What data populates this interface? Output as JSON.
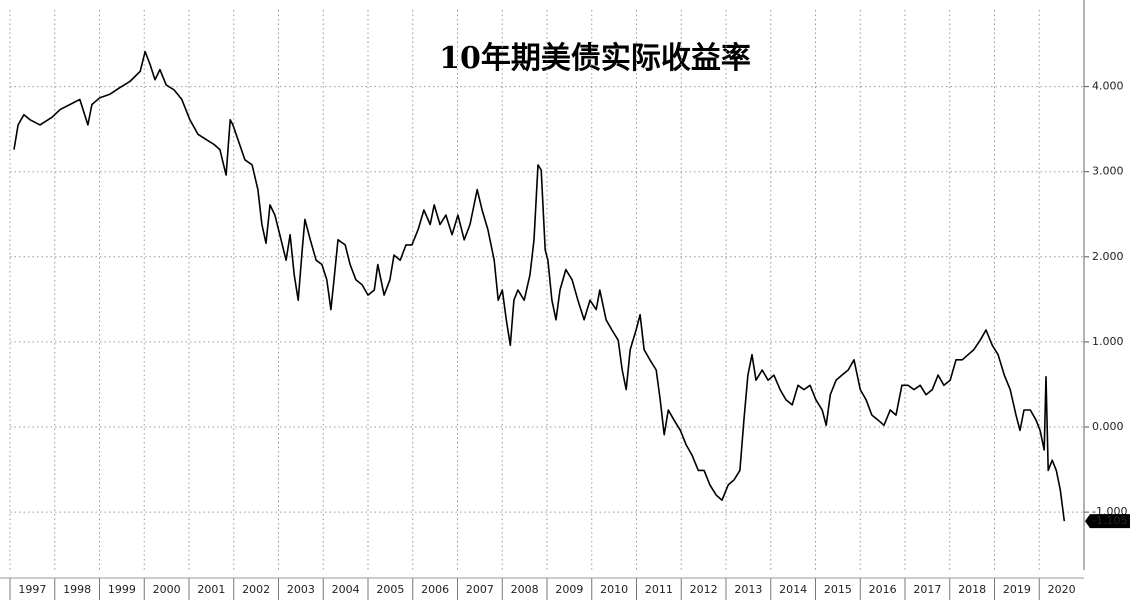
{
  "chart_data": {
    "type": "line",
    "title": "10年期美债实际收益率",
    "x": [
      1997.09,
      1997.18,
      1997.31,
      1997.45,
      1997.67,
      1997.94,
      1998.12,
      1998.34,
      1998.56,
      1998.74,
      1998.83,
      1999.01,
      1999.23,
      1999.46,
      1999.68,
      1999.91,
      2000.02,
      2000.13,
      2000.24,
      2000.35,
      2000.49,
      2000.67,
      2000.84,
      2001.02,
      2001.2,
      2001.38,
      2001.56,
      2001.69,
      2001.83,
      2001.92,
      2001.98,
      2002.25,
      2002.41,
      2002.54,
      2002.63,
      2002.72,
      2002.81,
      2002.92,
      2003.03,
      2003.17,
      2003.26,
      2003.35,
      2003.44,
      2003.53,
      2003.59,
      2003.71,
      2003.84,
      2003.97,
      2004.08,
      2004.17,
      2004.24,
      2004.33,
      2004.49,
      2004.6,
      2004.73,
      2004.87,
      2005.0,
      2005.14,
      2005.22,
      2005.36,
      2005.49,
      2005.58,
      2005.72,
      2005.85,
      2005.98,
      2006.12,
      2006.25,
      2006.39,
      2006.48,
      2006.61,
      2006.74,
      2006.88,
      2007.01,
      2007.15,
      2007.28,
      2007.44,
      2007.55,
      2007.68,
      2007.82,
      2007.91,
      2008.0,
      2008.09,
      2008.18,
      2008.26,
      2008.35,
      2008.49,
      2008.62,
      2008.71,
      2008.8,
      2008.87,
      2008.96,
      2009.02,
      2009.11,
      2009.2,
      2009.29,
      2009.42,
      2009.56,
      2009.69,
      2009.83,
      2009.96,
      2010.1,
      2010.18,
      2010.32,
      2010.45,
      2010.59,
      2010.68,
      2010.77,
      2010.86,
      2010.99,
      2011.08,
      2011.17,
      2011.3,
      2011.44,
      2011.53,
      2011.62,
      2011.71,
      2011.84,
      2011.98,
      2012.11,
      2012.24,
      2012.38,
      2012.51,
      2012.64,
      2012.78,
      2012.91,
      2013.05,
      2013.18,
      2013.31,
      2013.4,
      2013.49,
      2013.58,
      2013.67,
      2013.81,
      2013.94,
      2014.07,
      2014.21,
      2014.34,
      2014.48,
      2014.61,
      2014.74,
      2014.88,
      2015.01,
      2015.15,
      2015.24,
      2015.33,
      2015.46,
      2015.59,
      2015.73,
      2015.86,
      2016.0,
      2016.13,
      2016.26,
      2016.4,
      2016.53,
      2016.67,
      2016.8,
      2016.93,
      2017.07,
      2017.2,
      2017.34,
      2017.47,
      2017.61,
      2017.74,
      2017.87,
      2018.01,
      2018.14,
      2018.28,
      2018.41,
      2018.54,
      2018.68,
      2018.81,
      2018.95,
      2019.08,
      2019.22,
      2019.35,
      2019.48,
      2019.57,
      2019.66,
      2019.8,
      2019.93,
      2020.02,
      2020.11,
      2020.15,
      2020.2,
      2020.29,
      2020.38,
      2020.47,
      2020.56
    ],
    "series": [
      {
        "color": "#000000",
        "values": [
          3.26,
          3.55,
          3.67,
          3.61,
          3.55,
          3.64,
          3.73,
          3.79,
          3.85,
          3.55,
          3.79,
          3.87,
          3.91,
          3.99,
          4.06,
          4.18,
          4.41,
          4.26,
          4.08,
          4.2,
          4.02,
          3.96,
          3.85,
          3.61,
          3.44,
          3.38,
          3.32,
          3.26,
          2.96,
          3.61,
          3.55,
          3.14,
          3.08,
          2.79,
          2.38,
          2.16,
          2.61,
          2.49,
          2.26,
          1.96,
          2.26,
          1.79,
          1.49,
          2.08,
          2.44,
          2.2,
          1.96,
          1.91,
          1.73,
          1.38,
          1.73,
          2.2,
          2.14,
          1.91,
          1.73,
          1.67,
          1.55,
          1.61,
          1.91,
          1.55,
          1.73,
          2.02,
          1.96,
          2.14,
          2.14,
          2.32,
          2.55,
          2.38,
          2.61,
          2.38,
          2.49,
          2.26,
          2.49,
          2.2,
          2.38,
          2.79,
          2.55,
          2.32,
          1.96,
          1.49,
          1.61,
          1.26,
          0.96,
          1.49,
          1.61,
          1.49,
          1.79,
          2.2,
          3.08,
          3.02,
          2.08,
          1.96,
          1.49,
          1.26,
          1.61,
          1.85,
          1.73,
          1.49,
          1.26,
          1.49,
          1.38,
          1.61,
          1.26,
          1.14,
          1.02,
          0.67,
          0.44,
          0.91,
          1.14,
          1.32,
          0.91,
          0.79,
          0.67,
          0.32,
          -0.09,
          0.2,
          0.08,
          -0.04,
          -0.21,
          -0.33,
          -0.51,
          -0.51,
          -0.68,
          -0.8,
          -0.86,
          -0.68,
          -0.62,
          -0.51,
          0.08,
          0.61,
          0.85,
          0.55,
          0.67,
          0.55,
          0.61,
          0.44,
          0.32,
          0.26,
          0.49,
          0.44,
          0.49,
          0.32,
          0.2,
          0.02,
          0.38,
          0.55,
          0.61,
          0.67,
          0.79,
          0.44,
          0.32,
          0.14,
          0.08,
          0.02,
          0.2,
          0.14,
          0.49,
          0.49,
          0.44,
          0.49,
          0.38,
          0.44,
          0.61,
          0.49,
          0.55,
          0.79,
          0.79,
          0.85,
          0.91,
          1.02,
          1.14,
          0.96,
          0.85,
          0.61,
          0.44,
          0.14,
          -0.04,
          0.2,
          0.2,
          0.08,
          -0.04,
          -0.27,
          0.59,
          -0.51,
          -0.39,
          -0.51,
          -0.74,
          -1.105
        ]
      }
    ],
    "xlim": [
      1997,
      2021
    ],
    "xticks": [
      1997,
      1998,
      1999,
      2000,
      2001,
      2002,
      2003,
      2004,
      2005,
      2006,
      2007,
      2008,
      2009,
      2010,
      2011,
      2012,
      2013,
      2014,
      2015,
      2016,
      2017,
      2018,
      2019,
      2020
    ],
    "ylim": [
      -1.68,
      4.9
    ],
    "yticks": [
      {
        "value": -1,
        "label": "-1.000"
      },
      {
        "value": 0,
        "label": "0.000"
      },
      {
        "value": 1,
        "label": "1.000"
      },
      {
        "value": 2,
        "label": "2.000"
      },
      {
        "value": 3,
        "label": "3.000"
      },
      {
        "value": 4,
        "label": "4.000"
      }
    ],
    "grid": true
  }
}
